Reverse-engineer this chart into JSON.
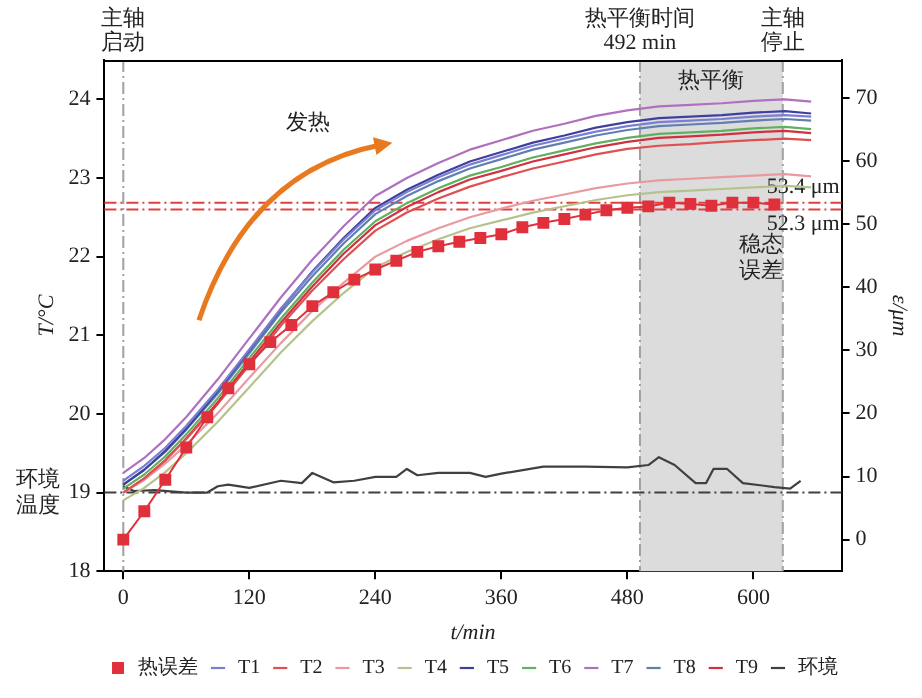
{
  "chart_data": {
    "type": "line",
    "xlabel": "t/min",
    "ylabel": "T/°C",
    "y2label": "ε/μm",
    "x": [
      0,
      20,
      40,
      60,
      90,
      120,
      150,
      180,
      210,
      240,
      270,
      300,
      330,
      360,
      390,
      420,
      450,
      480,
      510,
      540,
      570,
      600,
      630,
      655
    ],
    "xlim": [
      -18,
      684
    ],
    "xticks": [
      0,
      120,
      240,
      360,
      480,
      600
    ],
    "ylim": [
      18,
      24.5
    ],
    "yticks": [
      18,
      19,
      20,
      21,
      22,
      23,
      24
    ],
    "y2lim": [
      -5,
      76
    ],
    "y2ticks": [
      0,
      10,
      20,
      30,
      40,
      50,
      60,
      70
    ],
    "grid": false,
    "legend": "bottom",
    "series": [
      {
        "name": "T1",
        "color": "#7b7fd0",
        "marker": "none",
        "values": [
          19.15,
          19.34,
          19.57,
          19.85,
          20.31,
          20.82,
          21.34,
          21.8,
          22.22,
          22.59,
          22.82,
          23.01,
          23.17,
          23.29,
          23.41,
          23.5,
          23.59,
          23.66,
          23.71,
          23.73,
          23.75,
          23.78,
          23.8,
          23.78
        ]
      },
      {
        "name": "T2",
        "color": "#e05050",
        "marker": "none",
        "values": [
          19.0,
          19.18,
          19.41,
          19.68,
          20.13,
          20.62,
          21.12,
          21.57,
          21.97,
          22.33,
          22.56,
          22.74,
          22.89,
          23.01,
          23.12,
          23.21,
          23.3,
          23.37,
          23.41,
          23.43,
          23.46,
          23.48,
          23.5,
          23.48
        ]
      },
      {
        "name": "T3",
        "color": "#e89aa0",
        "marker": "none",
        "values": [
          19.0,
          19.16,
          19.37,
          19.61,
          20.01,
          20.46,
          20.9,
          21.31,
          21.67,
          22.0,
          22.2,
          22.36,
          22.5,
          22.61,
          22.71,
          22.79,
          22.87,
          22.93,
          22.97,
          22.99,
          23.01,
          23.03,
          23.05,
          23.02
        ]
      },
      {
        "name": "T4",
        "color": "#b5c38a",
        "marker": "none",
        "values": [
          18.9,
          19.06,
          19.26,
          19.5,
          19.9,
          20.34,
          20.78,
          21.18,
          21.54,
          21.86,
          22.06,
          22.22,
          22.36,
          22.46,
          22.56,
          22.64,
          22.72,
          22.78,
          22.82,
          22.84,
          22.86,
          22.88,
          22.9,
          22.88
        ]
      },
      {
        "name": "T5",
        "color": "#3f3fa0",
        "marker": "none",
        "values": [
          19.1,
          19.29,
          19.53,
          19.81,
          20.29,
          20.81,
          21.33,
          21.81,
          22.24,
          22.62,
          22.85,
          23.04,
          23.21,
          23.33,
          23.45,
          23.54,
          23.64,
          23.71,
          23.76,
          23.78,
          23.8,
          23.83,
          23.85,
          23.82
        ]
      },
      {
        "name": "T6",
        "color": "#5fb05f",
        "marker": "none",
        "values": [
          19.05,
          19.23,
          19.46,
          19.74,
          20.2,
          20.71,
          21.21,
          21.67,
          22.09,
          22.45,
          22.68,
          22.87,
          23.03,
          23.14,
          23.26,
          23.35,
          23.44,
          23.51,
          23.56,
          23.58,
          23.6,
          23.63,
          23.65,
          23.62
        ]
      },
      {
        "name": "T7",
        "color": "#b070c0",
        "marker": "none",
        "values": [
          19.25,
          19.44,
          19.68,
          19.96,
          20.44,
          20.96,
          21.48,
          21.96,
          22.39,
          22.77,
          23.0,
          23.19,
          23.36,
          23.48,
          23.6,
          23.69,
          23.79,
          23.86,
          23.91,
          23.93,
          23.95,
          23.98,
          24.0,
          23.97
        ]
      },
      {
        "name": "T8",
        "color": "#6080b0",
        "marker": "none",
        "values": [
          19.1,
          19.29,
          19.52,
          19.8,
          20.26,
          20.77,
          21.29,
          21.75,
          22.17,
          22.54,
          22.77,
          22.96,
          23.12,
          23.24,
          23.36,
          23.45,
          23.54,
          23.61,
          23.66,
          23.68,
          23.7,
          23.73,
          23.75,
          23.73
        ]
      },
      {
        "name": "T9",
        "color": "#d03040",
        "marker": "none",
        "values": [
          19.0,
          19.18,
          19.41,
          19.69,
          20.15,
          20.66,
          21.16,
          21.62,
          22.04,
          22.4,
          22.63,
          22.82,
          22.98,
          23.09,
          23.21,
          23.3,
          23.39,
          23.46,
          23.51,
          23.53,
          23.55,
          23.58,
          23.6,
          23.57
        ]
      },
      {
        "name": "环境",
        "color": "#404040",
        "marker": "none",
        "x": [
          0,
          10,
          30,
          60,
          80,
          90,
          100,
          120,
          150,
          170,
          180,
          200,
          220,
          240,
          260,
          270,
          280,
          300,
          330,
          345,
          360,
          400,
          440,
          480,
          500,
          510,
          525,
          545,
          555,
          562,
          575,
          590,
          620,
          635,
          645
        ],
        "values": [
          19.08,
          19.02,
          19.03,
          19.0,
          19.0,
          19.08,
          19.1,
          19.06,
          19.15,
          19.12,
          19.25,
          19.13,
          19.15,
          19.2,
          19.2,
          19.3,
          19.22,
          19.25,
          19.25,
          19.2,
          19.24,
          19.33,
          19.33,
          19.32,
          19.35,
          19.45,
          19.35,
          19.12,
          19.12,
          19.3,
          19.3,
          19.12,
          19.07,
          19.05,
          19.15
        ]
      },
      {
        "name": "热误差",
        "color": "#e0303c",
        "marker": "square",
        "axis": "y2",
        "x": [
          0,
          20,
          40,
          60,
          80,
          100,
          120,
          140,
          160,
          180,
          200,
          220,
          240,
          260,
          280,
          300,
          320,
          340,
          360,
          380,
          400,
          420,
          440,
          460,
          480,
          500,
          520,
          540,
          560,
          580,
          600,
          620
        ],
        "values": [
          0,
          4.5,
          9.5,
          14.6,
          19.4,
          24,
          27.8,
          31.3,
          34,
          37,
          39.2,
          41.2,
          42.8,
          44.2,
          45.6,
          46.5,
          47.2,
          47.8,
          48.4,
          49.5,
          50.2,
          50.8,
          51.5,
          52.2,
          52.6,
          52.8,
          53.4,
          53.2,
          52.9,
          53.4,
          53.4,
          53.1
        ]
      }
    ],
    "ref_lines": [
      {
        "axis": "x",
        "value": 0,
        "label": "主轴启动",
        "color": "#a0a0a0",
        "line_style": "dashed"
      },
      {
        "axis": "x",
        "value": 492,
        "label": "热平衡时间\n492 min",
        "color": "#a0a0a0",
        "line_style": "dashed"
      },
      {
        "axis": "x",
        "value": 628,
        "label": "主轴停止",
        "color": "#a0a0a0",
        "line_style": "dashed"
      },
      {
        "axis": "y",
        "value": 19,
        "label": "环境温度",
        "color": "#404040",
        "line_style": "dashed"
      },
      {
        "axis": "y2",
        "value": 53.4,
        "label": "53.4 μm",
        "color": "#e04040",
        "line_style": "dashed"
      },
      {
        "axis": "y2",
        "value": 52.3,
        "label": "52.3 μm",
        "color": "#e04040",
        "line_style": "dashed"
      }
    ],
    "bands": [
      {
        "axis": "x",
        "from": 492,
        "to": 628,
        "label": "热平衡",
        "color": "#dcdcdc"
      }
    ],
    "annotations": [
      "发热",
      "稳态误差"
    ]
  }
}
